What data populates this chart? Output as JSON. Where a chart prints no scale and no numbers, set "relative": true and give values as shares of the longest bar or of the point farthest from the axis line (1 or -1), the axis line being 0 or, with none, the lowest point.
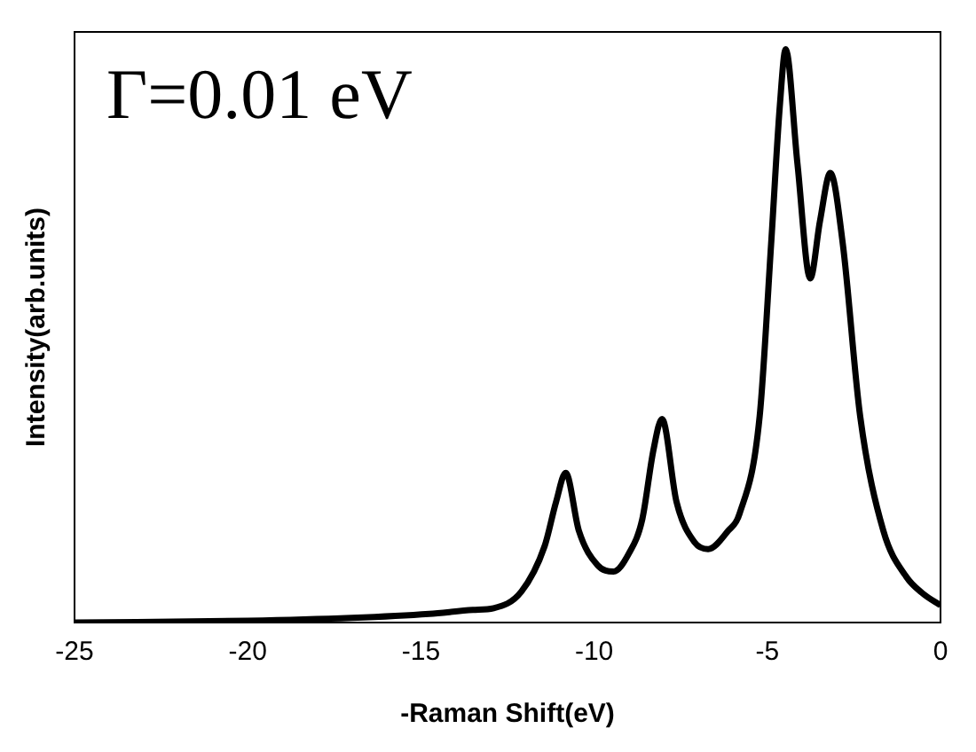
{
  "chart_data": {
    "type": "line",
    "xlabel": "-Raman Shift(eV)",
    "ylabel": "Intensity(arb.units)",
    "annotations": [
      "Γ=0.01 eV"
    ],
    "relative": true,
    "xlim": [
      -25,
      0
    ],
    "xticks": [
      -25,
      -20,
      -15,
      -10,
      -5,
      0
    ],
    "grid": false,
    "legend": false,
    "marker": "none",
    "line_style": "solid",
    "series": [
      {
        "color": "#000000",
        "x": [
          -25,
          -20,
          -17,
          -14.76,
          -13.5,
          -12.9,
          -12.1,
          -11.43,
          -11.1,
          -10.82,
          -10.44,
          -9.9,
          -9.44,
          -9,
          -8.61,
          -8.29,
          -8.04,
          -7.62,
          -7.1,
          -6.71,
          -6.13,
          -5.8,
          -5.22,
          -4.89,
          -4.64,
          -4.47,
          -4.13,
          -3.76,
          -3.48,
          -3.18,
          -2.82,
          -2.32,
          -1.65,
          -0.99,
          -0.5,
          0
        ],
        "values": [
          0,
          0.003,
          0.008,
          0.015,
          0.022,
          0.025,
          0.054,
          0.133,
          0.21,
          0.261,
          0.16,
          0.1,
          0.089,
          0.12,
          0.18,
          0.3,
          0.355,
          0.21,
          0.14,
          0.128,
          0.16,
          0.19,
          0.36,
          0.66,
          0.9,
          1,
          0.8,
          0.6,
          0.7,
          0.784,
          0.66,
          0.36,
          0.16,
          0.08,
          0.05,
          0.03
        ]
      }
    ]
  }
}
